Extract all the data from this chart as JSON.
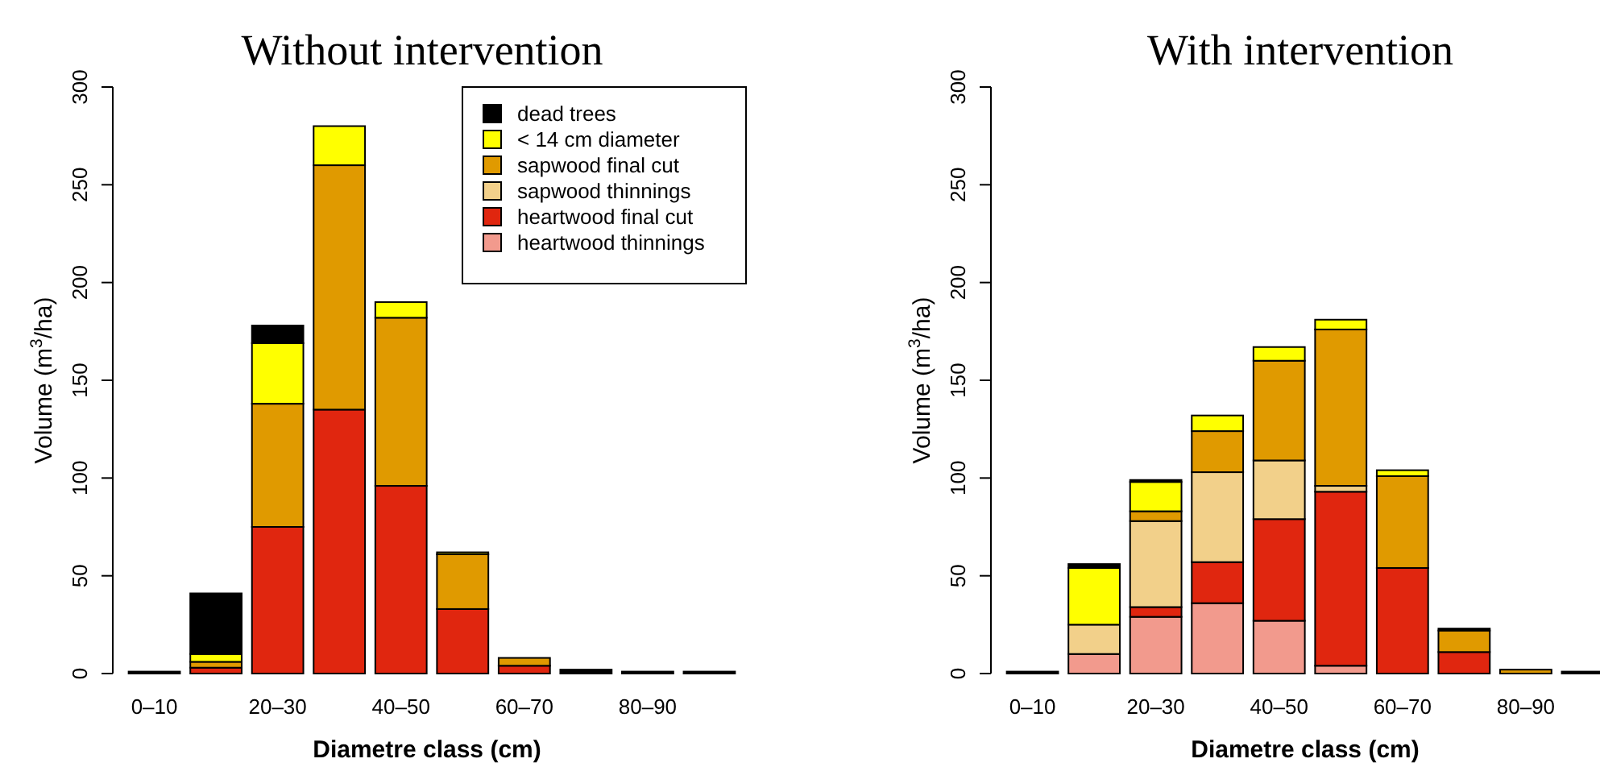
{
  "chart_data": [
    {
      "type": "bar",
      "stacked": true,
      "title": "Without intervention",
      "xlabel": "Diametre class (cm)",
      "ylabel": "Volume (m$^{3}$/ha)",
      "categories": [
        "0–10",
        null,
        "20–30",
        null,
        "40–50",
        null,
        "60–70",
        null,
        "80–90",
        null
      ],
      "ylim": [
        0,
        300
      ],
      "yticks": [
        0,
        50,
        100,
        150,
        200,
        250,
        300
      ],
      "legend": "top right",
      "series": [
        {
          "name": "heartwood thinnings",
          "color": "#f29a8d",
          "values": [
            0,
            0,
            0,
            0,
            0,
            0,
            0,
            0,
            0,
            0
          ]
        },
        {
          "name": "heartwood final cut",
          "color": "#e0260f",
          "values": [
            0,
            3,
            75,
            135,
            96,
            33,
            4,
            0,
            0,
            0
          ]
        },
        {
          "name": "sapwood thinnings",
          "color": "#f2d08a",
          "values": [
            0,
            0,
            0,
            0,
            0,
            0,
            0,
            0,
            0,
            0
          ]
        },
        {
          "name": "sapwood final cut",
          "color": "#e09a00",
          "values": [
            0,
            3,
            63,
            125,
            86,
            28,
            4,
            0,
            0,
            0
          ]
        },
        {
          "name": "< 14 cm diameter",
          "color": "#ffff00",
          "values": [
            0,
            4,
            31,
            20,
            8,
            1,
            0,
            0,
            0,
            0
          ]
        },
        {
          "name": "dead trees",
          "color": "#000000",
          "values": [
            1,
            31,
            9,
            0,
            0,
            0,
            0,
            2,
            1,
            1
          ]
        }
      ]
    },
    {
      "type": "bar",
      "stacked": true,
      "title": "With intervention",
      "xlabel": "Diametre class (cm)",
      "ylabel": "Volume (m$^{3}$/ha)",
      "categories": [
        "0–10",
        null,
        "20–30",
        null,
        "40–50",
        null,
        "60–70",
        null,
        "80–90",
        null
      ],
      "ylim": [
        0,
        300
      ],
      "yticks": [
        0,
        50,
        100,
        150,
        200,
        250,
        300
      ],
      "series": [
        {
          "color": "#f29a8d",
          "values": [
            0,
            10,
            29,
            36,
            27,
            4,
            0,
            0,
            0,
            0
          ]
        },
        {
          "color": "#e0260f",
          "values": [
            0,
            0,
            5,
            21,
            52,
            89,
            54,
            11,
            0,
            0
          ]
        },
        {
          "color": "#f2d08a",
          "values": [
            0,
            15,
            44,
            46,
            30,
            3,
            0,
            0,
            0,
            0
          ]
        },
        {
          "color": "#e09a00",
          "values": [
            0,
            0,
            5,
            21,
            51,
            80,
            47,
            11,
            2,
            0
          ]
        },
        {
          "color": "#ffff00",
          "values": [
            0,
            29,
            15,
            8,
            7,
            5,
            3,
            0,
            0,
            0
          ]
        },
        {
          "color": "#000000",
          "values": [
            1,
            2,
            1,
            0,
            0,
            0,
            0,
            1,
            0,
            1
          ]
        }
      ]
    }
  ]
}
